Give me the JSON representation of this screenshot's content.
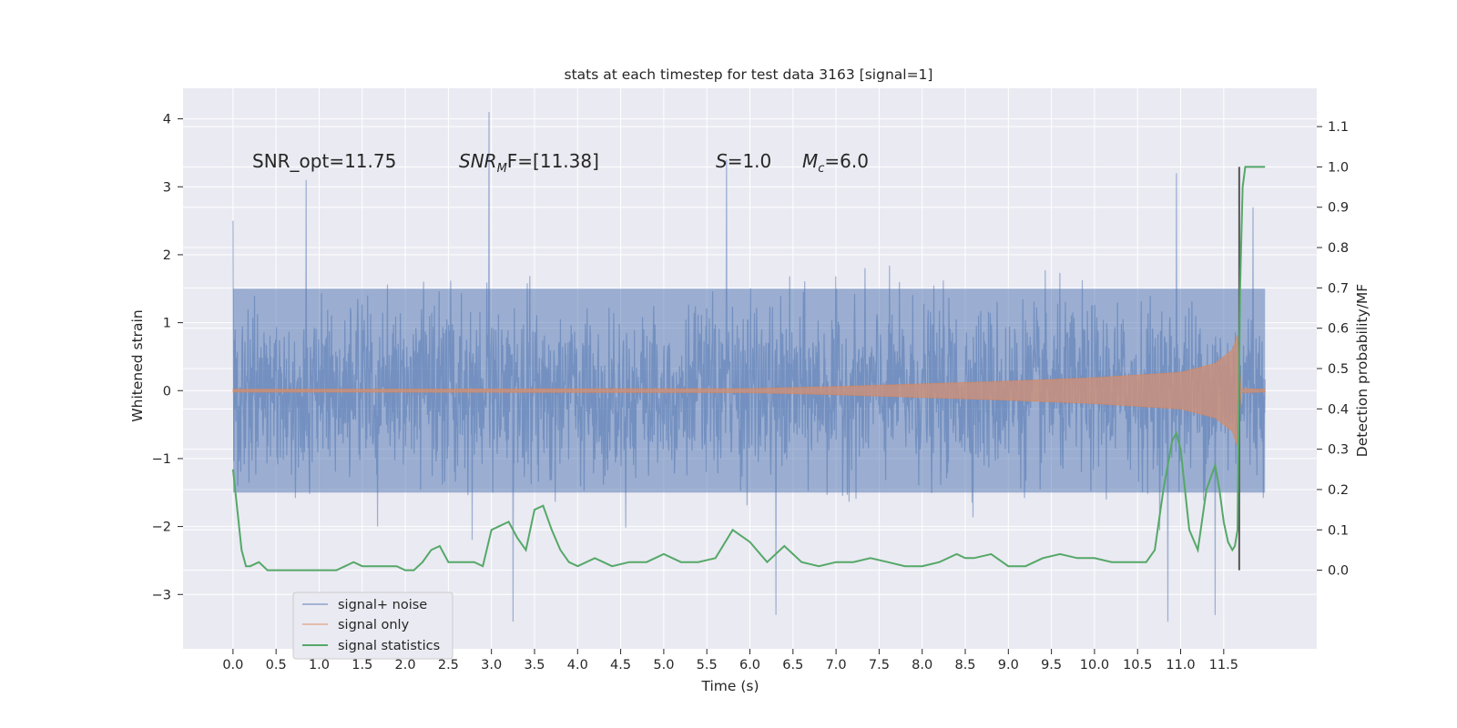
{
  "chart_data": {
    "type": "line",
    "title": "stats at each timestep for test data 3163 [signal=1]",
    "xlabel": "Time (s)",
    "ylabel": "Whitened strain",
    "y2label": "Detection probability/MF",
    "xlim": [
      -0.58,
      12.58
    ],
    "ylim": [
      -3.8,
      4.45
    ],
    "y2lim": [
      -0.195,
      1.195
    ],
    "x_ticks": [
      "0.0",
      "0.5",
      "1.0",
      "1.5",
      "2.0",
      "2.5",
      "3.0",
      "3.5",
      "4.0",
      "4.5",
      "5.0",
      "5.5",
      "6.0",
      "6.5",
      "7.0",
      "7.5",
      "8.0",
      "8.5",
      "9.0",
      "9.5",
      "10.0",
      "10.5",
      "11.0",
      "11.5"
    ],
    "y_ticks": [
      "4",
      "3",
      "2",
      "1",
      "0",
      "−1",
      "−2",
      "−3"
    ],
    "y2_ticks": [
      "1.1",
      "1.0",
      "0.9",
      "0.8",
      "0.7",
      "0.6",
      "0.5",
      "0.4",
      "0.3",
      "0.2",
      "0.1",
      "0.0"
    ],
    "grid": true,
    "legend_position": "lower-left",
    "annotations": {
      "snr_opt": "SNR_opt=11.75",
      "snr_mf_label": "SNR",
      "snr_mf_sub": "M",
      "snr_mf_rest": "F=[11.38]",
      "s_label": "S",
      "s_value": "=1.0",
      "mc_label": "M",
      "mc_sub": "c",
      "mc_value": "=6.0"
    },
    "vertical_line_x": 11.68,
    "series": [
      {
        "name": "signal+ noise",
        "color": "#4c72b0",
        "x_range": [
          0.0,
          11.98
        ],
        "typical_envelope": [
          -1.5,
          1.5
        ],
        "peak_values": [
          {
            "x": 0.0,
            "y": 2.5
          },
          {
            "x": 0.85,
            "y": 3.1
          },
          {
            "x": 2.97,
            "y": 4.1
          },
          {
            "x": 3.25,
            "y": -3.4
          },
          {
            "x": 5.73,
            "y": 3.4
          },
          {
            "x": 6.3,
            "y": -3.3
          },
          {
            "x": 10.95,
            "y": 3.2
          },
          {
            "x": 10.85,
            "y": -3.4
          },
          {
            "x": 11.4,
            "y": -3.3
          },
          {
            "x": 11.84,
            "y": 2.7
          }
        ]
      },
      {
        "name": "signal only",
        "color": "#dd8452",
        "x_range": [
          0.0,
          11.98
        ],
        "amplitude": [
          {
            "x": 0.0,
            "y": 0.02
          },
          {
            "x": 6.0,
            "y": 0.03
          },
          {
            "x": 7.0,
            "y": 0.06
          },
          {
            "x": 8.0,
            "y": 0.1
          },
          {
            "x": 9.0,
            "y": 0.14
          },
          {
            "x": 10.0,
            "y": 0.19
          },
          {
            "x": 11.0,
            "y": 0.27
          },
          {
            "x": 11.4,
            "y": 0.4
          },
          {
            "x": 11.6,
            "y": 0.6
          },
          {
            "x": 11.67,
            "y": 0.85
          },
          {
            "x": 11.69,
            "y": 0.03
          },
          {
            "x": 11.98,
            "y": 0.02
          }
        ]
      },
      {
        "name": "signal statistics",
        "color": "#55a868",
        "x": [
          0.0,
          0.05,
          0.1,
          0.15,
          0.2,
          0.3,
          0.4,
          0.5,
          0.6,
          0.7,
          0.8,
          0.9,
          1.0,
          1.1,
          1.2,
          1.3,
          1.4,
          1.5,
          1.6,
          1.7,
          1.8,
          1.9,
          2.0,
          2.1,
          2.2,
          2.3,
          2.4,
          2.5,
          2.6,
          2.7,
          2.8,
          2.9,
          3.0,
          3.1,
          3.2,
          3.3,
          3.4,
          3.5,
          3.6,
          3.7,
          3.8,
          3.9,
          4.0,
          4.2,
          4.4,
          4.6,
          4.8,
          5.0,
          5.2,
          5.4,
          5.6,
          5.8,
          6.0,
          6.2,
          6.4,
          6.5,
          6.6,
          6.8,
          7.0,
          7.2,
          7.4,
          7.6,
          7.8,
          8.0,
          8.2,
          8.4,
          8.5,
          8.6,
          8.8,
          9.0,
          9.2,
          9.4,
          9.6,
          9.8,
          10.0,
          10.2,
          10.4,
          10.6,
          10.7,
          10.8,
          10.9,
          10.95,
          11.0,
          11.1,
          11.2,
          11.3,
          11.4,
          11.45,
          11.5,
          11.55,
          11.6,
          11.63,
          11.66,
          11.69,
          11.72,
          11.75,
          11.8,
          11.9,
          11.98
        ],
        "y": [
          0.25,
          0.15,
          0.05,
          0.01,
          0.01,
          0.02,
          0.0,
          0.0,
          0.0,
          0.0,
          0.0,
          0.0,
          0.0,
          0.0,
          0.0,
          0.01,
          0.02,
          0.01,
          0.01,
          0.01,
          0.01,
          0.01,
          0.0,
          0.0,
          0.02,
          0.05,
          0.06,
          0.02,
          0.02,
          0.02,
          0.02,
          0.01,
          0.1,
          0.11,
          0.12,
          0.08,
          0.05,
          0.15,
          0.16,
          0.1,
          0.05,
          0.02,
          0.01,
          0.03,
          0.01,
          0.02,
          0.02,
          0.04,
          0.02,
          0.02,
          0.03,
          0.1,
          0.07,
          0.02,
          0.06,
          0.04,
          0.02,
          0.01,
          0.02,
          0.02,
          0.03,
          0.02,
          0.01,
          0.01,
          0.02,
          0.04,
          0.03,
          0.03,
          0.04,
          0.01,
          0.01,
          0.03,
          0.04,
          0.03,
          0.03,
          0.02,
          0.02,
          0.02,
          0.05,
          0.2,
          0.32,
          0.34,
          0.3,
          0.1,
          0.05,
          0.2,
          0.26,
          0.2,
          0.12,
          0.07,
          0.05,
          0.06,
          0.1,
          0.7,
          0.95,
          1.0,
          1.0,
          1.0,
          1.0
        ]
      }
    ]
  }
}
